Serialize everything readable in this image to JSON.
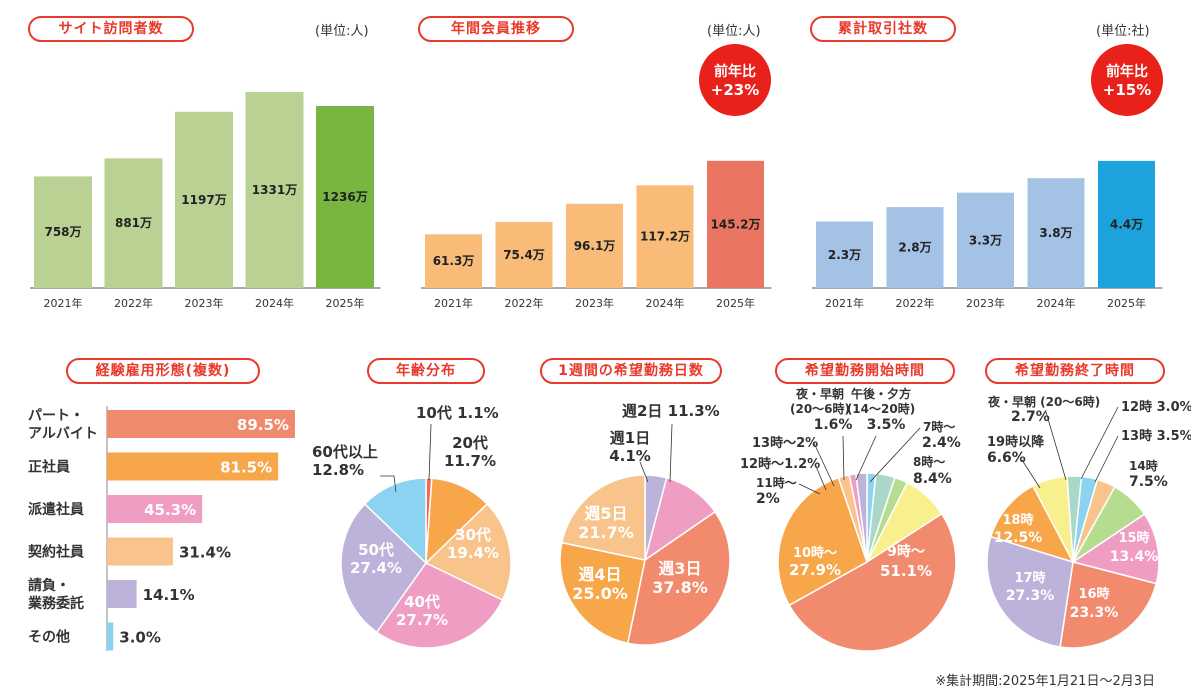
{
  "visits": {
    "title": "サイト訪問者数",
    "unit": "(単位:人)",
    "chart_data": {
      "type": "bar",
      "title": "サイト訪問者数",
      "unit": "(単位:人)",
      "categories": [
        "2021年",
        "2022年",
        "2023年",
        "2024年",
        "2025年"
      ],
      "values": [
        758,
        881,
        1197,
        1331,
        1236
      ],
      "labels": [
        "758万",
        "881万",
        "1197万",
        "1331万",
        "1236万"
      ],
      "colors": [
        "#b9d294",
        "#b9d294",
        "#b9d294",
        "#b9d294",
        "#78b541"
      ],
      "ylim": [
        0,
        1440
      ]
    }
  },
  "members": {
    "title": "年間会員推移",
    "unit": "(単位:人)",
    "badge_line1": "前年比",
    "badge_line2": "+23%",
    "chart_data": {
      "type": "bar",
      "title": "年間会員推移",
      "unit": "(単位:人)",
      "categories": [
        "2021年",
        "2022年",
        "2023年",
        "2024年",
        "2025年"
      ],
      "values": [
        61.3,
        75.4,
        96.1,
        117.2,
        145.2
      ],
      "labels": [
        "61.3万",
        "75.4万",
        "96.1万",
        "117.2万",
        "145.2万"
      ],
      "colors": [
        "#f8bb78",
        "#f8bb78",
        "#f8bb78",
        "#f8bb78",
        "#ea7563"
      ],
      "ylim": [
        0,
        242
      ]
    }
  },
  "companies": {
    "title": "累計取引社数",
    "unit": "(単位:社)",
    "badge_line1": "前年比",
    "badge_line2": "+15%",
    "chart_data": {
      "type": "bar",
      "title": "累計取引社数",
      "unit": "(単位:社)",
      "categories": [
        "2021年",
        "2022年",
        "2023年",
        "2024年",
        "2025年"
      ],
      "values": [
        2.3,
        2.8,
        3.3,
        3.8,
        4.4
      ],
      "labels": [
        "2.3万",
        "2.8万",
        "3.3万",
        "3.8万",
        "4.4万"
      ],
      "colors": [
        "#a3c2e6",
        "#a3c2e6",
        "#a3c2e6",
        "#a3c2e6",
        "#1ca3dd"
      ],
      "ylim": [
        0,
        7.2
      ]
    }
  },
  "employment": {
    "title": "経験雇用形態(複数)",
    "chart_data": {
      "type": "bar",
      "orientation": "horizontal",
      "title": "経験雇用形態(複数)",
      "categories": [
        [
          "パート・",
          "アルバイト"
        ],
        [
          "正社員"
        ],
        [
          "派遣社員"
        ],
        [
          "契約社員"
        ],
        [
          "請負・",
          "業務委託"
        ],
        [
          "その他"
        ]
      ],
      "values": [
        89.5,
        81.5,
        45.3,
        31.4,
        14.1,
        3.0
      ],
      "labels": [
        "89.5%",
        "81.5%",
        "45.3%",
        "31.4%",
        "14.1%",
        "3.0%"
      ],
      "colors": [
        "#f08a6e",
        "#f8a64a",
        "#f09dc4",
        "#f8c48c",
        "#bdb3da",
        "#8cd2f1"
      ],
      "xlim": [
        0,
        100
      ]
    }
  },
  "age": {
    "title": "年齢分布",
    "chart_data": {
      "type": "pie",
      "title": "年齢分布",
      "slices": [
        {
          "name": "10代",
          "value": 1.1,
          "text": "10代 1.1%",
          "color": "#f26a55"
        },
        {
          "name": "20代",
          "value": 11.7,
          "text": "20代 11.7%",
          "color": "#f8a64a"
        },
        {
          "name": "30代",
          "value": 19.4,
          "text": "30代 19.4%",
          "color": "#f8c48c"
        },
        {
          "name": "40代",
          "value": 27.7,
          "text": "40代 27.7%",
          "color": "#f09dc4"
        },
        {
          "name": "50代",
          "value": 27.4,
          "text": "50代 27.4%",
          "color": "#bdb3da"
        },
        {
          "name": "60代以上",
          "value": 12.8,
          "text": "60代以上 12.8%",
          "color": "#8cd2f1"
        }
      ]
    }
  },
  "weekdays": {
    "title": "1週間の希望勤務日数",
    "chart_data": {
      "type": "pie",
      "title": "1週間の希望勤務日数",
      "slices": [
        {
          "name": "週1日",
          "value": 4.1,
          "text": "週1日 4.1%",
          "color": "#bdb3da"
        },
        {
          "name": "週2日",
          "value": 11.3,
          "text": "週2日 11.3%",
          "color": "#f09dc4"
        },
        {
          "name": "週3日",
          "value": 37.8,
          "text": "週3日 37.8%",
          "color": "#f28a6d"
        },
        {
          "name": "週4日",
          "value": 25.0,
          "text": "週4日 25.0%",
          "color": "#f8a64a"
        },
        {
          "name": "週5日",
          "value": 21.7,
          "text": "週5日 21.7%",
          "color": "#f8c48c"
        }
      ]
    }
  },
  "start": {
    "title": "希望勤務開始時間",
    "chart_data": {
      "type": "pie",
      "title": "希望勤務開始時間",
      "slices": [
        {
          "name": "夜・早朝(20〜6時)",
          "value": 1.6,
          "text": "1.6%",
          "color": "#8cd2f1"
        },
        {
          "name": "午後・夕方(14〜20時)",
          "value": 3.5,
          "text": "3.5%",
          "color": "#a9d7c8"
        },
        {
          "name": "7時〜",
          "value": 2.4,
          "text": "7時〜 2.4%",
          "color": "#b5dc8f"
        },
        {
          "name": "8時〜",
          "value": 8.4,
          "text": "8時〜 8.4%",
          "color": "#f8f08c"
        },
        {
          "name": "9時〜",
          "value": 51.1,
          "text": "9時〜 51.1%",
          "color": "#f28a6d"
        },
        {
          "name": "10時〜",
          "value": 27.9,
          "text": "10時〜 27.9%",
          "color": "#f8a64a"
        },
        {
          "name": "11時〜",
          "value": 2.0,
          "text": "11時〜 2%",
          "color": "#f8c48c"
        },
        {
          "name": "12時〜",
          "value": 1.2,
          "text": "12時〜1.2%",
          "color": "#f09dc4"
        },
        {
          "name": "13時〜",
          "value": 2.0,
          "text": "13時〜2%",
          "color": "#bdb3da"
        }
      ]
    }
  },
  "end": {
    "title": "希望勤務終了時間",
    "chart_data": {
      "type": "pie",
      "title": "希望勤務終了時間",
      "slices": [
        {
          "name": "夜・早朝(20〜6時)",
          "value": 2.7,
          "text": "2.7%",
          "color": "#a9d7c8"
        },
        {
          "name": "12時",
          "value": 3.0,
          "text": "12時 3.0%",
          "color": "#8cd2f1"
        },
        {
          "name": "13時",
          "value": 3.5,
          "text": "13時 3.5%",
          "color": "#f8c48c"
        },
        {
          "name": "14時",
          "value": 7.5,
          "text": "14時 7.5%",
          "color": "#b5dc8f"
        },
        {
          "name": "15時",
          "value": 13.4,
          "text": "15時 13.4%",
          "color": "#f09dc4"
        },
        {
          "name": "16時",
          "value": 23.3,
          "text": "16時 23.3%",
          "color": "#f28a6d"
        },
        {
          "name": "17時",
          "value": 27.3,
          "text": "17時 27.3%",
          "color": "#bdb3da"
        },
        {
          "name": "18時",
          "value": 12.5,
          "text": "18時 12.5%",
          "color": "#f8a64a"
        },
        {
          "name": "19時以降",
          "value": 6.6,
          "text": "19時以降 6.6%",
          "color": "#f8f08c"
        }
      ]
    }
  },
  "footer": {
    "period": "※集計期間:2025年1月21日〜2月3日"
  }
}
